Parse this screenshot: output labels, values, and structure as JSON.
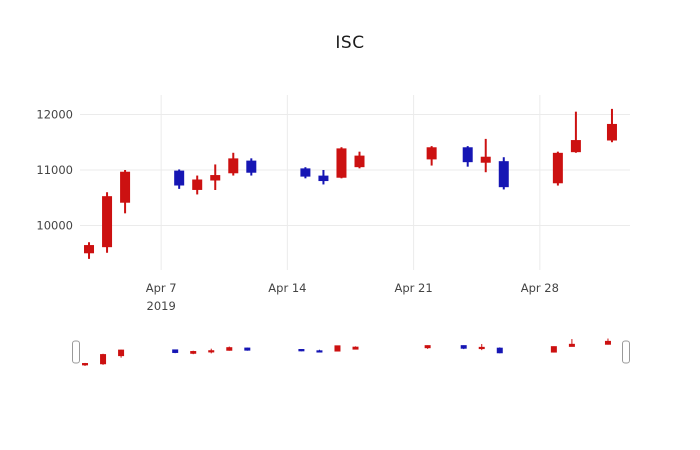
{
  "chart_data": {
    "type": "candlestick",
    "title": "ISC",
    "xlabel": "",
    "ylabel": "",
    "legend": "none",
    "bg_color": "#ffffff",
    "grid_color": "#ebebeb",
    "tick_color": "#444444",
    "increasing_color": "#1616b4",
    "decreasing_color": "#cc1111",
    "y_ticks": [
      10000,
      11000,
      12000
    ],
    "ylim": [
      9200,
      12350
    ],
    "x_ticks": [
      {
        "label": "Apr 7",
        "sublabel": "2019",
        "day": 7
      },
      {
        "label": "Apr 14",
        "sublabel": "",
        "day": 14
      },
      {
        "label": "Apr 21",
        "sublabel": "",
        "day": 21
      },
      {
        "label": "Apr 28",
        "sublabel": "",
        "day": 28
      }
    ],
    "x_range": [
      2.5,
      33.0
    ],
    "y_range": [
      9200,
      12350
    ],
    "rangeslider": {
      "visible": true,
      "handles": [
        "left",
        "right"
      ]
    },
    "ohlc": [
      {
        "date": "Apr 3",
        "day": 3,
        "open": 9640,
        "high": 9700,
        "low": 9400,
        "close": 9510
      },
      {
        "date": "Apr 4",
        "day": 4,
        "open": 10520,
        "high": 10600,
        "low": 9510,
        "close": 9620
      },
      {
        "date": "Apr 5",
        "day": 5,
        "open": 10960,
        "high": 11000,
        "low": 10220,
        "close": 10420
      },
      {
        "date": "Apr 8",
        "day": 8,
        "open": 10730,
        "high": 11010,
        "low": 10660,
        "close": 10980
      },
      {
        "date": "Apr 9",
        "day": 9,
        "open": 10820,
        "high": 10900,
        "low": 10560,
        "close": 10650
      },
      {
        "date": "Apr 10",
        "day": 10,
        "open": 10900,
        "high": 11100,
        "low": 10640,
        "close": 10820
      },
      {
        "date": "Apr 11",
        "day": 11,
        "open": 11200,
        "high": 11310,
        "low": 10900,
        "close": 10950
      },
      {
        "date": "Apr 12",
        "day": 12,
        "open": 10960,
        "high": 11210,
        "low": 10900,
        "close": 11160
      },
      {
        "date": "Apr 15",
        "day": 15,
        "open": 10890,
        "high": 11050,
        "low": 10850,
        "close": 11020
      },
      {
        "date": "Apr 16",
        "day": 16,
        "open": 10810,
        "high": 11000,
        "low": 10740,
        "close": 10890
      },
      {
        "date": "Apr 17",
        "day": 17,
        "open": 11380,
        "high": 11410,
        "low": 10850,
        "close": 10870
      },
      {
        "date": "Apr 18",
        "day": 18,
        "open": 11250,
        "high": 11330,
        "low": 11030,
        "close": 11060
      },
      {
        "date": "Apr 22",
        "day": 22,
        "open": 11400,
        "high": 11430,
        "low": 11080,
        "close": 11200
      },
      {
        "date": "Apr 24",
        "day": 24,
        "open": 11150,
        "high": 11430,
        "low": 11060,
        "close": 11400
      },
      {
        "date": "Apr 25",
        "day": 25,
        "open": 11230,
        "high": 11560,
        "low": 10960,
        "close": 11140
      },
      {
        "date": "Apr 26",
        "day": 26,
        "open": 10700,
        "high": 11230,
        "low": 10650,
        "close": 11150
      },
      {
        "date": "Apr 29",
        "day": 29,
        "open": 11300,
        "high": 11330,
        "low": 10720,
        "close": 10770
      },
      {
        "date": "Apr 30",
        "day": 30,
        "open": 11530,
        "high": 12050,
        "low": 11310,
        "close": 11330
      },
      {
        "date": "May 2",
        "day": 32,
        "open": 11820,
        "high": 12100,
        "low": 11500,
        "close": 11540
      }
    ]
  }
}
